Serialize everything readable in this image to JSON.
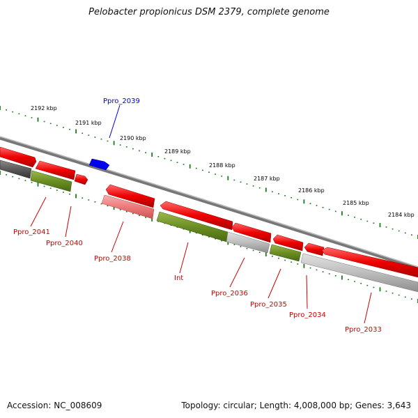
{
  "title": "Pelobacter propionicus DSM 2379, complete genome",
  "footer": {
    "accession": "Accession: NC_008609",
    "summary": "Topology: circular; Length: 4,008,000 bp; Genes: 3,643"
  },
  "scale_labels": [
    "2192 kbp",
    "2191 kbp",
    "2190 kbp",
    "2189 kbp",
    "2188 kbp",
    "2187 kbp",
    "2186 kbp",
    "2185 kbp",
    "2184 kbp"
  ],
  "gene_labels": {
    "top": "Ppro_2039",
    "bottom": [
      "Ppro_2041",
      "Ppro_2040",
      "Ppro_2038",
      "Int",
      "Ppro_2036",
      "Ppro_2035",
      "Ppro_2034",
      "Ppro_2033"
    ]
  },
  "colors": {
    "cds_red": "#ff0000",
    "cds_light_red": "#f08080",
    "rna_green": "#6b8e23",
    "blue_gene": "#0000ee",
    "pseudo_gray": "#b8b8b8",
    "dark_gray": "#555555",
    "tick_green": "#1a7a1a",
    "label_red": "#cc0000",
    "label_blue": "#0000cc"
  }
}
